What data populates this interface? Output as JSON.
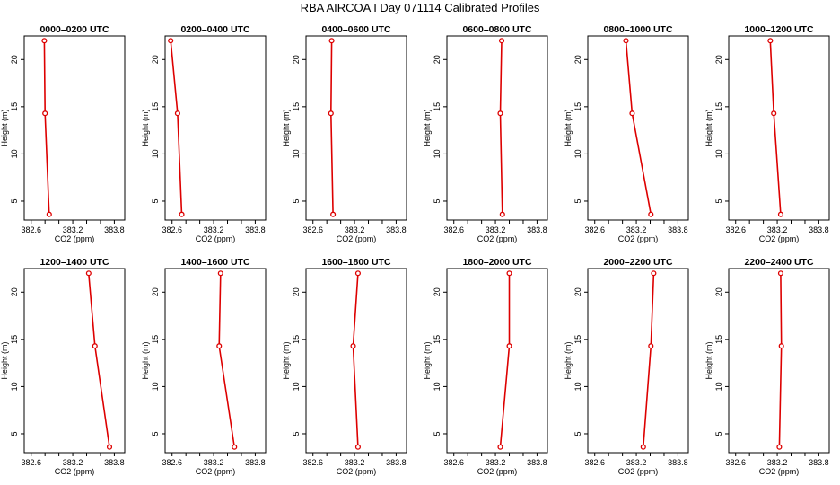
{
  "title": "RBA AIRCOA I  Day 071114  Calibrated Profiles",
  "colors": {
    "profile": "#dd0000",
    "axis": "#000000",
    "background": "#ffffff"
  },
  "chart_data": [
    {
      "type": "line",
      "title": "0000–0200 UTC",
      "xlabel": "CO2 (ppm)",
      "ylabel": "Height (m)",
      "xlim": [
        382.5,
        383.95
      ],
      "ylim": [
        3,
        22.5
      ],
      "xticks": [
        "382.6",
        "383.2",
        "383.8"
      ],
      "yticks": [
        "5",
        "10",
        "15",
        "20"
      ],
      "series": [
        {
          "x": [
            382.79,
            382.8,
            382.86
          ],
          "y": [
            22,
            14.3,
            3.6
          ]
        }
      ]
    },
    {
      "type": "line",
      "title": "0200–0400 UTC",
      "xlabel": "CO2 (ppm)",
      "ylabel": "Height (m)",
      "xlim": [
        382.5,
        383.95
      ],
      "ylim": [
        3,
        22.5
      ],
      "xticks": [
        "382.6",
        "383.2",
        "383.8"
      ],
      "yticks": [
        "5",
        "10",
        "15",
        "20"
      ],
      "series": [
        {
          "x": [
            382.58,
            382.68,
            382.74
          ],
          "y": [
            22,
            14.3,
            3.6
          ]
        }
      ]
    },
    {
      "type": "line",
      "title": "0400–0600 UTC",
      "xlabel": "CO2 (ppm)",
      "ylabel": "Height (m)",
      "xlim": [
        382.5,
        383.95
      ],
      "ylim": [
        3,
        22.5
      ],
      "xticks": [
        "382.6",
        "383.2",
        "383.8"
      ],
      "yticks": [
        "5",
        "10",
        "15",
        "20"
      ],
      "series": [
        {
          "x": [
            382.87,
            382.86,
            382.89
          ],
          "y": [
            22,
            14.3,
            3.6
          ]
        }
      ]
    },
    {
      "type": "line",
      "title": "0600–0800 UTC",
      "xlabel": "CO2 (ppm)",
      "ylabel": "Height (m)",
      "xlim": [
        382.5,
        383.95
      ],
      "ylim": [
        3,
        22.5
      ],
      "xticks": [
        "382.6",
        "383.2",
        "383.8"
      ],
      "yticks": [
        "5",
        "10",
        "15",
        "20"
      ],
      "series": [
        {
          "x": [
            383.29,
            383.27,
            383.3
          ],
          "y": [
            22,
            14.3,
            3.6
          ]
        }
      ]
    },
    {
      "type": "line",
      "title": "0800–1000 UTC",
      "xlabel": "CO2 (ppm)",
      "ylabel": "Height (m)",
      "xlim": [
        382.5,
        383.95
      ],
      "ylim": [
        3,
        22.5
      ],
      "xticks": [
        "382.6",
        "383.2",
        "383.8"
      ],
      "yticks": [
        "5",
        "10",
        "15",
        "20"
      ],
      "series": [
        {
          "x": [
            383.05,
            383.14,
            383.41
          ],
          "y": [
            22,
            14.3,
            3.6
          ]
        }
      ]
    },
    {
      "type": "line",
      "title": "1000–1200 UTC",
      "xlabel": "CO2 (ppm)",
      "ylabel": "Height (m)",
      "xlim": [
        382.5,
        383.95
      ],
      "ylim": [
        3,
        22.5
      ],
      "xticks": [
        "382.6",
        "383.2",
        "383.8"
      ],
      "yticks": [
        "5",
        "10",
        "15",
        "20"
      ],
      "series": [
        {
          "x": [
            383.1,
            383.15,
            383.25
          ],
          "y": [
            22,
            14.3,
            3.6
          ]
        }
      ]
    },
    {
      "type": "line",
      "title": "1200–1400 UTC",
      "xlabel": "CO2 (ppm)",
      "ylabel": "Height (m)",
      "xlim": [
        382.5,
        383.95
      ],
      "ylim": [
        3,
        22.5
      ],
      "xticks": [
        "382.6",
        "383.2",
        "383.8"
      ],
      "yticks": [
        "5",
        "10",
        "15",
        "20"
      ],
      "series": [
        {
          "x": [
            383.43,
            383.52,
            383.73
          ],
          "y": [
            22,
            14.3,
            3.6
          ]
        }
      ]
    },
    {
      "type": "line",
      "title": "1400–1600 UTC",
      "xlabel": "CO2 (ppm)",
      "ylabel": "Height (m)",
      "xlim": [
        382.5,
        383.95
      ],
      "ylim": [
        3,
        22.5
      ],
      "xticks": [
        "382.6",
        "383.2",
        "383.8"
      ],
      "yticks": [
        "5",
        "10",
        "15",
        "20"
      ],
      "series": [
        {
          "x": [
            383.3,
            383.28,
            383.5
          ],
          "y": [
            22,
            14.3,
            3.6
          ]
        }
      ]
    },
    {
      "type": "line",
      "title": "1600–1800 UTC",
      "xlabel": "CO2 (ppm)",
      "ylabel": "Height (m)",
      "xlim": [
        382.5,
        383.95
      ],
      "ylim": [
        3,
        22.5
      ],
      "xticks": [
        "382.6",
        "383.2",
        "383.8"
      ],
      "yticks": [
        "5",
        "10",
        "15",
        "20"
      ],
      "series": [
        {
          "x": [
            383.25,
            383.18,
            383.25
          ],
          "y": [
            22,
            14.3,
            3.6
          ]
        }
      ]
    },
    {
      "type": "line",
      "title": "1800–2000 UTC",
      "xlabel": "CO2 (ppm)",
      "ylabel": "Height (m)",
      "xlim": [
        382.5,
        383.95
      ],
      "ylim": [
        3,
        22.5
      ],
      "xticks": [
        "382.6",
        "383.2",
        "383.8"
      ],
      "yticks": [
        "5",
        "10",
        "15",
        "20"
      ],
      "series": [
        {
          "x": [
            383.4,
            383.4,
            383.27
          ],
          "y": [
            22,
            14.3,
            3.6
          ]
        }
      ]
    },
    {
      "type": "line",
      "title": "2000–2200 UTC",
      "xlabel": "CO2 (ppm)",
      "ylabel": "Height (m)",
      "xlim": [
        382.5,
        383.95
      ],
      "ylim": [
        3,
        22.5
      ],
      "xticks": [
        "382.6",
        "383.2",
        "383.8"
      ],
      "yticks": [
        "5",
        "10",
        "15",
        "20"
      ],
      "series": [
        {
          "x": [
            383.45,
            383.41,
            383.3
          ],
          "y": [
            22,
            14.3,
            3.6
          ]
        }
      ]
    },
    {
      "type": "line",
      "title": "2200–2400 UTC",
      "xlabel": "CO2 (ppm)",
      "ylabel": "Height (m)",
      "xlim": [
        382.5,
        383.95
      ],
      "ylim": [
        3,
        22.5
      ],
      "xticks": [
        "382.6",
        "383.2",
        "383.8"
      ],
      "yticks": [
        "5",
        "10",
        "15",
        "20"
      ],
      "series": [
        {
          "x": [
            383.25,
            383.26,
            383.23
          ],
          "y": [
            22,
            14.3,
            3.6
          ]
        }
      ]
    }
  ]
}
